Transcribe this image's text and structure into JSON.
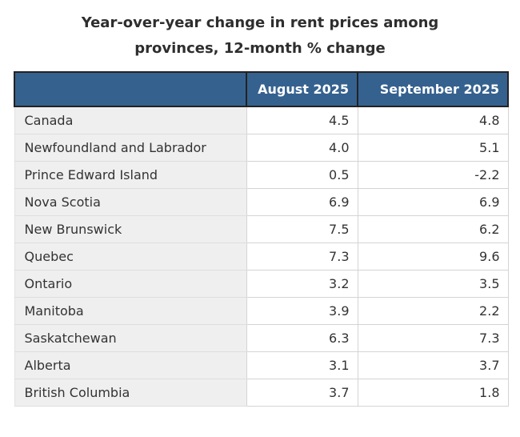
{
  "title": "Year-over-year change in rent prices among provinces, 12-month % change",
  "table": {
    "corner_label": ""
  },
  "colors": {
    "header_bg": "#35618F",
    "header_text": "#ffffff",
    "header_border": "#222222",
    "label_column_bg": "#efefef",
    "grid_border": "#d4d4d4",
    "body_text": "#333333",
    "title_text": "#2e2e2e"
  },
  "chart_data": {
    "type": "table",
    "title": "Year-over-year change in rent prices among provinces, 12-month % change",
    "categories": [
      "Canada",
      "Newfoundland and Labrador",
      "Prince Edward Island",
      "Nova Scotia",
      "New Brunswick",
      "Quebec",
      "Ontario",
      "Manitoba",
      "Saskatchewan",
      "Alberta",
      "British Columbia"
    ],
    "series": [
      {
        "name": "August 2025",
        "values": [
          4.5,
          4.0,
          0.5,
          6.9,
          7.5,
          7.3,
          3.2,
          3.9,
          6.3,
          3.1,
          3.7
        ]
      },
      {
        "name": "September 2025",
        "values": [
          4.8,
          5.1,
          -2.2,
          6.9,
          6.2,
          9.6,
          3.5,
          2.2,
          7.3,
          3.7,
          1.8
        ]
      }
    ],
    "value_precision": 1,
    "layout": {
      "legend_position": "none",
      "grid": true,
      "label_column_align": "left",
      "value_columns_align": "right"
    }
  }
}
